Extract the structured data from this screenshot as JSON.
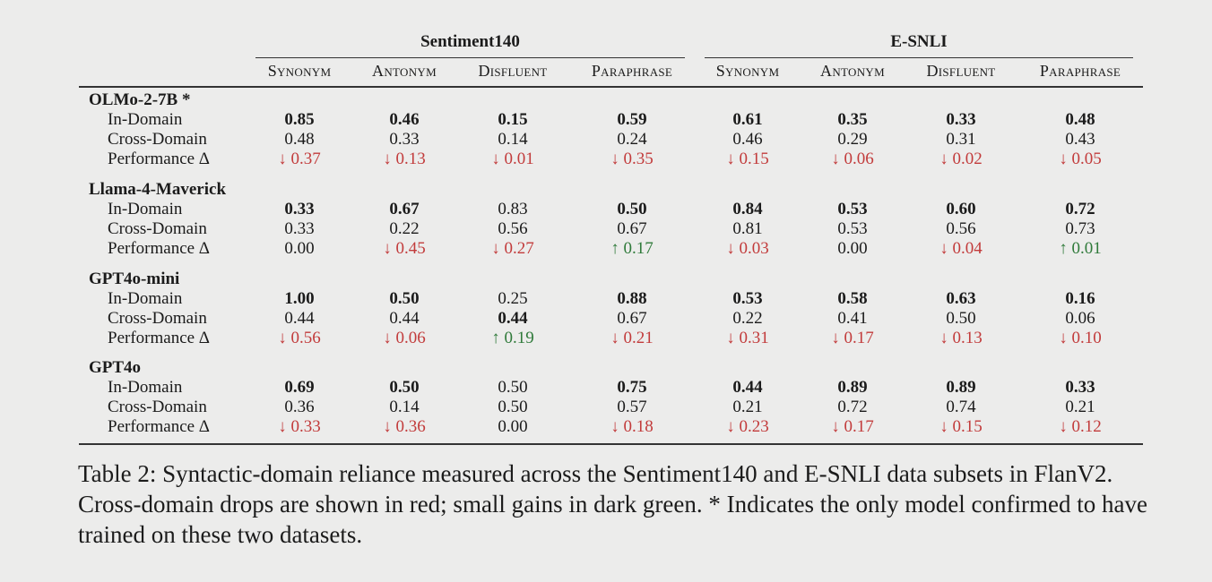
{
  "table": {
    "groups": [
      {
        "name": "Sentiment140",
        "columns": [
          "Synonym",
          "Antonym",
          "Disfluent",
          "Paraphrase"
        ]
      },
      {
        "name": "E-SNLI",
        "columns": [
          "Synonym",
          "Antonym",
          "Disfluent",
          "Paraphrase"
        ]
      }
    ],
    "row_labels": [
      "In-Domain",
      "Cross-Domain",
      "Performance Δ"
    ],
    "models": [
      {
        "name": "OLMo-2-7B *",
        "in_domain": [
          "0.85",
          "0.46",
          "0.15",
          "0.59",
          "0.61",
          "0.35",
          "0.33",
          "0.48"
        ],
        "in_domain_bold": [
          true,
          true,
          true,
          true,
          true,
          true,
          true,
          true
        ],
        "cross_domain": [
          "0.48",
          "0.33",
          "0.14",
          "0.24",
          "0.46",
          "0.29",
          "0.31",
          "0.43"
        ],
        "cross_domain_bold": [
          false,
          false,
          false,
          false,
          false,
          false,
          false,
          false
        ],
        "delta": [
          "↓ 0.37",
          "↓ 0.13",
          "↓ 0.01",
          "↓ 0.35",
          "↓ 0.15",
          "↓ 0.06",
          "↓ 0.02",
          "↓ 0.05"
        ],
        "delta_dir": [
          "down",
          "down",
          "down",
          "down",
          "down",
          "down",
          "down",
          "down"
        ]
      },
      {
        "name": "Llama-4-Maverick",
        "in_domain": [
          "0.33",
          "0.67",
          "0.83",
          "0.50",
          "0.84",
          "0.53",
          "0.60",
          "0.72"
        ],
        "in_domain_bold": [
          true,
          true,
          false,
          true,
          true,
          true,
          true,
          true
        ],
        "cross_domain": [
          "0.33",
          "0.22",
          "0.56",
          "0.67",
          "0.81",
          "0.53",
          "0.56",
          "0.73"
        ],
        "cross_domain_bold": [
          false,
          false,
          false,
          false,
          false,
          false,
          false,
          false
        ],
        "delta": [
          "0.00",
          "↓ 0.45",
          "↓ 0.27",
          "↑ 0.17",
          "↓ 0.03",
          "0.00",
          "↓ 0.04",
          "↑ 0.01"
        ],
        "delta_dir": [
          "none",
          "down",
          "down",
          "up",
          "down",
          "none",
          "down",
          "up"
        ]
      },
      {
        "name": "GPT4o-mini",
        "in_domain": [
          "1.00",
          "0.50",
          "0.25",
          "0.88",
          "0.53",
          "0.58",
          "0.63",
          "0.16"
        ],
        "in_domain_bold": [
          true,
          true,
          false,
          true,
          true,
          true,
          true,
          true
        ],
        "cross_domain": [
          "0.44",
          "0.44",
          "0.44",
          "0.67",
          "0.22",
          "0.41",
          "0.50",
          "0.06"
        ],
        "cross_domain_bold": [
          false,
          false,
          true,
          false,
          false,
          false,
          false,
          false
        ],
        "delta": [
          "↓ 0.56",
          "↓ 0.06",
          "↑ 0.19",
          "↓ 0.21",
          "↓ 0.31",
          "↓ 0.17",
          "↓ 0.13",
          "↓ 0.10"
        ],
        "delta_dir": [
          "down",
          "down",
          "up",
          "down",
          "down",
          "down",
          "down",
          "down"
        ]
      },
      {
        "name": "GPT4o",
        "in_domain": [
          "0.69",
          "0.50",
          "0.50",
          "0.75",
          "0.44",
          "0.89",
          "0.89",
          "0.33"
        ],
        "in_domain_bold": [
          true,
          true,
          false,
          true,
          true,
          true,
          true,
          true
        ],
        "cross_domain": [
          "0.36",
          "0.14",
          "0.50",
          "0.57",
          "0.21",
          "0.72",
          "0.74",
          "0.21"
        ],
        "cross_domain_bold": [
          false,
          false,
          false,
          false,
          false,
          false,
          false,
          false
        ],
        "delta": [
          "↓ 0.33",
          "↓ 0.36",
          "0.00",
          "↓ 0.18",
          "↓ 0.23",
          "↓ 0.17",
          "↓ 0.15",
          "↓ 0.12"
        ],
        "delta_dir": [
          "down",
          "down",
          "none",
          "down",
          "down",
          "down",
          "down",
          "down"
        ]
      }
    ]
  },
  "caption": "Table 2: Syntactic-domain reliance measured across the Sentiment140 and E-SNLI data subsets in FlanV2. Cross-domain drops are shown in red; small gains in dark green. * Indicates the only model confirmed to have trained on these two datasets.",
  "colors": {
    "down": "#c23b3b",
    "up": "#2f7a3a",
    "rule": "#333333",
    "background": "#ececeb"
  }
}
